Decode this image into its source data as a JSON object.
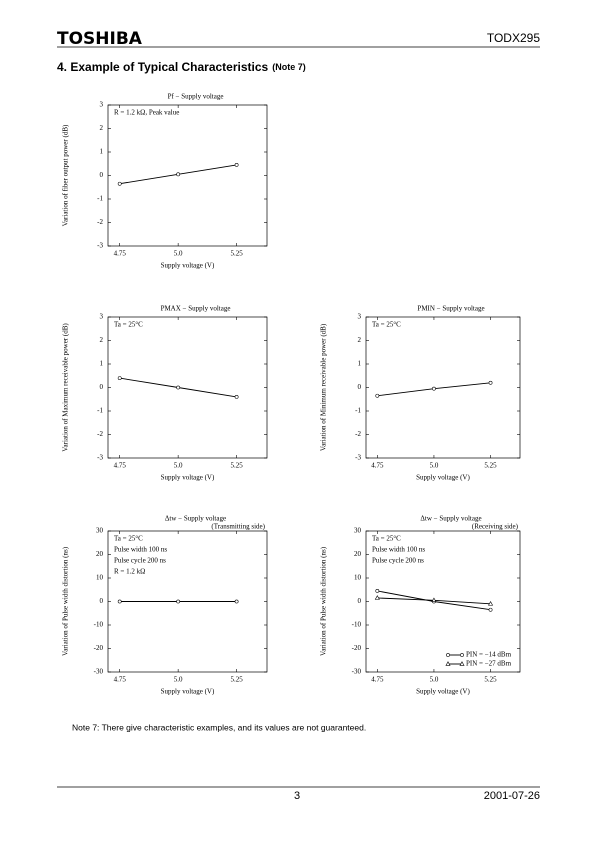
{
  "header": {
    "logo": "TOSHIBA",
    "part_number": "TODX295"
  },
  "section": {
    "title": "4. Example of Typical Characteristics",
    "note_ref": "(Note 7)"
  },
  "chart_data": [
    {
      "type": "line",
      "title": "Pf − Supply voltage",
      "annotations": [
        "R = 1.2 kΩ, Peak value"
      ],
      "xlabel": "Supply voltage (V)",
      "ylabel": "Variation of fiber output power (dB)",
      "x": [
        4.75,
        5.0,
        5.25
      ],
      "xlim": [
        4.7,
        5.38
      ],
      "xticks": [
        4.75,
        {
          "value": 5.0,
          "label": "5.0"
        },
        5.25
      ],
      "ylim": [
        -3,
        3
      ],
      "yticks": [
        -3,
        -2,
        -1,
        0,
        1,
        2,
        3
      ],
      "color": "#000000",
      "series": [
        {
          "marker": "circle",
          "values": [
            -0.35,
            0.05,
            0.45
          ]
        }
      ]
    },
    {
      "type": "line",
      "title": "PMAX − Supply voltage",
      "annotations": [
        "Ta = 25°C"
      ],
      "xlabel": "Supply voltage (V)",
      "ylabel": "Variation of Maximum receivable power (dB)",
      "x": [
        4.75,
        5.0,
        5.25
      ],
      "xlim": [
        4.7,
        5.38
      ],
      "xticks": [
        4.75,
        {
          "value": 5.0,
          "label": "5.0"
        },
        5.25
      ],
      "ylim": [
        -3,
        3
      ],
      "yticks": [
        -3,
        -2,
        -1,
        0,
        1,
        2,
        3
      ],
      "color": "#000000",
      "series": [
        {
          "marker": "circle",
          "values": [
            0.4,
            0.0,
            -0.4
          ]
        }
      ]
    },
    {
      "type": "line",
      "title": "PMIN − Supply voltage",
      "annotations": [
        "Ta = 25°C"
      ],
      "xlabel": "Supply voltage (V)",
      "ylabel": "Variation of Minimum receivable power (dB)",
      "x": [
        4.75,
        5.0,
        5.25
      ],
      "xlim": [
        4.7,
        5.38
      ],
      "xticks": [
        4.75,
        {
          "value": 5.0,
          "label": "5.0"
        },
        5.25
      ],
      "ylim": [
        -3,
        3
      ],
      "yticks": [
        -3,
        -2,
        -1,
        0,
        1,
        2,
        3
      ],
      "color": "#000000",
      "series": [
        {
          "marker": "circle",
          "values": [
            -0.35,
            -0.05,
            0.2
          ]
        }
      ]
    },
    {
      "type": "line",
      "title": "Δtw − Supply voltage",
      "subtitle": "(Transmitting side)",
      "annotations": [
        "Ta = 25°C",
        "Pulse width 100 ns",
        "Pulse cycle 200 ns",
        "R = 1.2 kΩ"
      ],
      "xlabel": "Supply voltage (V)",
      "ylabel": "Variation of Pulse width distortion (ns)",
      "x": [
        4.75,
        5.0,
        5.25
      ],
      "xlim": [
        4.7,
        5.38
      ],
      "xticks": [
        4.75,
        {
          "value": 5.0,
          "label": "5.0"
        },
        5.25
      ],
      "ylim": [
        -30,
        30
      ],
      "yticks": [
        -30,
        -20,
        -10,
        0,
        10,
        20,
        30
      ],
      "color": "#000000",
      "series": [
        {
          "marker": "circle",
          "values": [
            0,
            0,
            0
          ]
        }
      ]
    },
    {
      "type": "line",
      "title": "Δtw − Supply voltage",
      "subtitle": "(Receiving side)",
      "annotations": [
        "Ta = 25°C",
        "Pulse width 100 ns",
        "Pulse cycle 200 ns"
      ],
      "xlabel": "Supply voltage (V)",
      "ylabel": "Variation of Pulse width distortion (ns)",
      "x": [
        4.75,
        5.0,
        5.25
      ],
      "xlim": [
        4.7,
        5.38
      ],
      "xticks": [
        4.75,
        {
          "value": 5.0,
          "label": "5.0"
        },
        5.25
      ],
      "ylim": [
        -30,
        30
      ],
      "yticks": [
        -30,
        -20,
        -10,
        0,
        10,
        20,
        30
      ],
      "color": "#000000",
      "legend": "lower right",
      "series": [
        {
          "name": "PIN = −14 dBm",
          "marker": "circle",
          "values": [
            4.5,
            0,
            -3.5
          ]
        },
        {
          "name": "PIN = −27 dBm",
          "marker": "triangle",
          "values": [
            1.5,
            0.5,
            -1
          ]
        }
      ]
    }
  ],
  "note": "Note 7:  There give characteristic examples, and its values are not guaranteed.",
  "footer": {
    "page": "3",
    "date": "2001-07-26"
  }
}
